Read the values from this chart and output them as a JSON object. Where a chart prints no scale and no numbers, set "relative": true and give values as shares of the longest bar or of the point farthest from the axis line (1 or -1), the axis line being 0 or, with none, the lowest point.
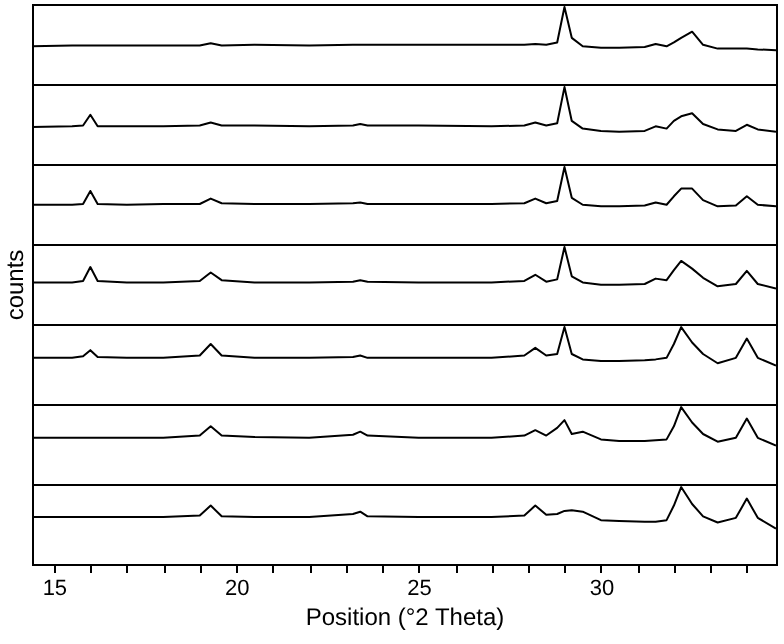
{
  "chart_data": [
    {
      "type": "line",
      "relative": true,
      "xlim": [
        14.4,
        34.8
      ],
      "tick_labels": false,
      "x": [
        14.4,
        15.5,
        15.8,
        16.0,
        16.2,
        17,
        18,
        19.0,
        19.3,
        19.6,
        20.5,
        22,
        23.2,
        23.4,
        23.6,
        25,
        27,
        27.9,
        28.2,
        28.5,
        28.8,
        29.0,
        29.2,
        29.5,
        30.0,
        30.5,
        31.2,
        31.5,
        31.8,
        32.0,
        32.2,
        32.5,
        32.8,
        33.2,
        33.7,
        34.0,
        34.3,
        34.8
      ],
      "series": [
        {
          "color": "#000000",
          "values": [
            0.49,
            0.5,
            0.5,
            0.5,
            0.5,
            0.5,
            0.5,
            0.5,
            0.53,
            0.5,
            0.51,
            0.5,
            0.51,
            0.51,
            0.51,
            0.51,
            0.51,
            0.51,
            0.52,
            0.51,
            0.54,
            1,
            0.6,
            0.49,
            0.47,
            0.47,
            0.48,
            0.52,
            0.49,
            0.54,
            0.6,
            0.68,
            0.51,
            0.46,
            0.46,
            0.46,
            0.45,
            0.44
          ]
        }
      ]
    },
    {
      "type": "line",
      "relative": true,
      "xlim": [
        14.4,
        34.8
      ],
      "tick_labels": false,
      "x": [
        14.4,
        15.5,
        15.8,
        16.0,
        16.2,
        17,
        18,
        19.0,
        19.3,
        19.6,
        20.5,
        22,
        23.2,
        23.4,
        23.6,
        25,
        27,
        27.9,
        28.2,
        28.5,
        28.8,
        29.0,
        29.2,
        29.5,
        30.0,
        30.5,
        31.2,
        31.5,
        31.8,
        32.0,
        32.2,
        32.5,
        32.8,
        33.2,
        33.7,
        34.0,
        34.3,
        34.8
      ],
      "series": [
        {
          "color": "#000000",
          "values": [
            0.48,
            0.49,
            0.5,
            0.64,
            0.49,
            0.49,
            0.49,
            0.5,
            0.54,
            0.5,
            0.5,
            0.49,
            0.5,
            0.52,
            0.5,
            0.5,
            0.49,
            0.5,
            0.54,
            0.5,
            0.53,
            1,
            0.56,
            0.46,
            0.43,
            0.42,
            0.43,
            0.49,
            0.46,
            0.56,
            0.62,
            0.66,
            0.52,
            0.45,
            0.43,
            0.51,
            0.45,
            0.42
          ]
        }
      ]
    },
    {
      "type": "line",
      "relative": true,
      "xlim": [
        14.4,
        34.8
      ],
      "tick_labels": false,
      "x": [
        14.4,
        15.5,
        15.8,
        16.0,
        16.2,
        17,
        18,
        19.0,
        19.3,
        19.6,
        20.5,
        22,
        23.2,
        23.4,
        23.6,
        25,
        27,
        27.9,
        28.2,
        28.5,
        28.8,
        29.0,
        29.2,
        29.5,
        30.0,
        30.5,
        31.2,
        31.5,
        31.8,
        32.0,
        32.2,
        32.5,
        32.8,
        33.2,
        33.7,
        34.0,
        34.3,
        34.8
      ],
      "series": [
        {
          "color": "#000000",
          "values": [
            0.51,
            0.51,
            0.52,
            0.69,
            0.52,
            0.51,
            0.52,
            0.52,
            0.59,
            0.53,
            0.52,
            0.52,
            0.53,
            0.54,
            0.52,
            0.52,
            0.52,
            0.53,
            0.59,
            0.53,
            0.56,
            1,
            0.6,
            0.51,
            0.49,
            0.49,
            0.5,
            0.54,
            0.51,
            0.62,
            0.72,
            0.72,
            0.57,
            0.49,
            0.5,
            0.62,
            0.51,
            0.49
          ]
        }
      ]
    },
    {
      "type": "line",
      "relative": true,
      "xlim": [
        14.4,
        34.8
      ],
      "tick_labels": false,
      "ylabel": "counts",
      "x": [
        14.4,
        15.5,
        15.8,
        16.0,
        16.2,
        17,
        18,
        19.0,
        19.3,
        19.6,
        20.5,
        22,
        23.2,
        23.4,
        23.6,
        25,
        27,
        27.9,
        28.2,
        28.5,
        28.8,
        29.0,
        29.2,
        29.5,
        30.0,
        30.5,
        31.2,
        31.5,
        31.8,
        32.0,
        32.2,
        32.5,
        32.8,
        33.2,
        33.7,
        34.0,
        34.3,
        34.8
      ],
      "series": [
        {
          "color": "#000000",
          "values": [
            0.54,
            0.54,
            0.56,
            0.74,
            0.56,
            0.54,
            0.54,
            0.56,
            0.67,
            0.57,
            0.54,
            0.54,
            0.55,
            0.57,
            0.55,
            0.54,
            0.54,
            0.56,
            0.64,
            0.55,
            0.58,
            1,
            0.62,
            0.54,
            0.51,
            0.51,
            0.52,
            0.59,
            0.57,
            0.7,
            0.82,
            0.72,
            0.6,
            0.49,
            0.52,
            0.69,
            0.52,
            0.46
          ]
        }
      ]
    },
    {
      "type": "line",
      "relative": true,
      "xlim": [
        14.4,
        34.8
      ],
      "tick_labels": false,
      "x": [
        14.4,
        15.5,
        15.8,
        16.0,
        16.2,
        17,
        18,
        19.0,
        19.3,
        19.6,
        20.5,
        22,
        23.2,
        23.4,
        23.6,
        25,
        27,
        27.9,
        28.2,
        28.5,
        28.8,
        29.0,
        29.2,
        29.5,
        30.0,
        30.5,
        31.2,
        31.5,
        31.8,
        32.0,
        32.2,
        32.5,
        32.8,
        33.2,
        33.7,
        34.0,
        34.3,
        34.8
      ],
      "series": [
        {
          "color": "#000000",
          "values": [
            0.6,
            0.6,
            0.62,
            0.7,
            0.61,
            0.6,
            0.6,
            0.63,
            0.78,
            0.63,
            0.6,
            0.6,
            0.61,
            0.63,
            0.6,
            0.6,
            0.6,
            0.63,
            0.73,
            0.63,
            0.65,
            1,
            0.65,
            0.58,
            0.56,
            0.56,
            0.57,
            0.58,
            0.6,
            0.78,
            1,
            0.8,
            0.65,
            0.53,
            0.6,
            0.85,
            0.6,
            0.5
          ]
        }
      ]
    },
    {
      "type": "line",
      "relative": true,
      "xlim": [
        14.4,
        34.8
      ],
      "tick_labels": false,
      "x": [
        14.4,
        15.5,
        15.8,
        16.0,
        16.2,
        17,
        18,
        19.0,
        19.3,
        19.6,
        20.5,
        22,
        23.2,
        23.4,
        23.6,
        25,
        27,
        27.9,
        28.2,
        28.5,
        28.8,
        29.0,
        29.2,
        29.5,
        30.0,
        30.5,
        31.2,
        31.5,
        31.8,
        32.0,
        32.2,
        32.5,
        32.8,
        33.2,
        33.7,
        34.0,
        34.3,
        34.8
      ],
      "series": [
        {
          "color": "#000000",
          "values": [
            0.6,
            0.6,
            0.6,
            0.6,
            0.6,
            0.6,
            0.6,
            0.63,
            0.75,
            0.63,
            0.61,
            0.6,
            0.64,
            0.68,
            0.63,
            0.6,
            0.6,
            0.63,
            0.7,
            0.63,
            0.73,
            0.83,
            0.65,
            0.68,
            0.58,
            0.56,
            0.56,
            0.57,
            0.58,
            0.75,
            1,
            0.8,
            0.65,
            0.55,
            0.6,
            0.85,
            0.6,
            0.5
          ]
        }
      ]
    },
    {
      "type": "line",
      "relative": true,
      "xlim": [
        14.4,
        34.8
      ],
      "tick_labels": "x",
      "xlabel": "Position (°2 Theta)",
      "xticks": [
        15,
        {
          "value": 16,
          "label": null
        },
        {
          "value": 17,
          "label": null
        },
        {
          "value": 18,
          "label": null
        },
        {
          "value": 19,
          "label": null
        },
        20,
        {
          "value": 21,
          "label": null
        },
        {
          "value": 22,
          "label": null
        },
        {
          "value": 23,
          "label": null
        },
        {
          "value": 24,
          "label": null
        },
        25,
        {
          "value": 26,
          "label": null
        },
        {
          "value": 27,
          "label": null
        },
        {
          "value": 28,
          "label": null
        },
        {
          "value": 29,
          "label": null
        },
        30,
        {
          "value": 31,
          "label": null
        },
        {
          "value": 32,
          "label": null
        },
        {
          "value": 33,
          "label": null
        },
        {
          "value": 34,
          "label": null
        }
      ],
      "x": [
        14.4,
        15.5,
        15.8,
        16.0,
        16.2,
        17,
        18,
        19.0,
        19.3,
        19.6,
        20.5,
        22,
        23.2,
        23.4,
        23.6,
        25,
        27,
        27.9,
        28.2,
        28.5,
        28.8,
        29.0,
        29.2,
        29.5,
        30.0,
        30.5,
        31.2,
        31.5,
        31.8,
        32.0,
        32.2,
        32.5,
        32.8,
        33.2,
        33.7,
        34.0,
        34.3,
        34.8
      ],
      "series": [
        {
          "color": "#000000",
          "values": [
            0.61,
            0.61,
            0.61,
            0.61,
            0.61,
            0.61,
            0.61,
            0.63,
            0.76,
            0.62,
            0.61,
            0.61,
            0.65,
            0.68,
            0.62,
            0.61,
            0.61,
            0.63,
            0.76,
            0.64,
            0.65,
            0.69,
            0.7,
            0.68,
            0.57,
            0.56,
            0.55,
            0.55,
            0.57,
            0.76,
            1,
            0.78,
            0.62,
            0.54,
            0.6,
            0.85,
            0.6,
            0.46
          ]
        }
      ]
    }
  ]
}
